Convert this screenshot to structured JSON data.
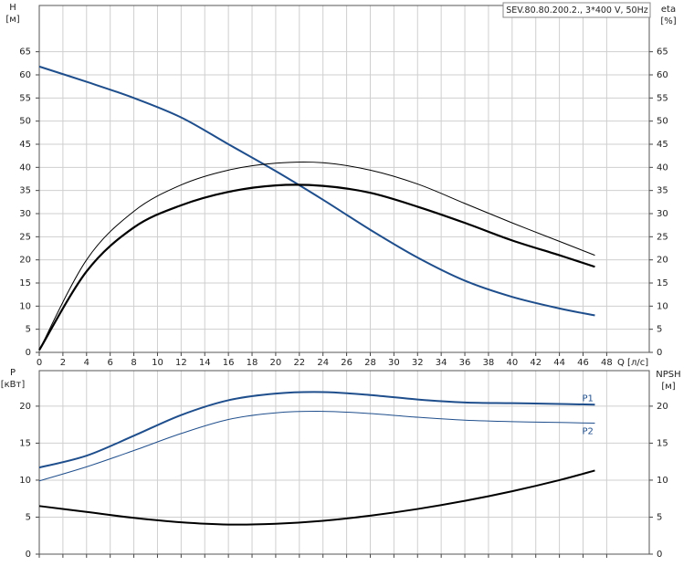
{
  "chart_data": [
    {
      "type": "line",
      "title": "SEV.80.80.200.2., 3*400 V, 50Hz",
      "xlabel": "Q [л/с]",
      "ylabel": "H",
      "yunit": "[м]",
      "y2label": "eta",
      "y2unit": "[%]",
      "x": [
        0,
        4,
        8,
        12,
        16,
        20,
        24,
        28,
        32,
        36,
        40,
        44,
        47
      ],
      "series": [
        {
          "color": "#1f4e8c",
          "values": [
            61.8,
            58.5,
            55,
            50.8,
            45,
            39.2,
            33,
            26.5,
            20.5,
            15.5,
            12,
            9.5,
            8
          ]
        },
        {
          "color": "#000000",
          "axis": "y2",
          "values": [
            0.5,
            17.5,
            27,
            31.8,
            34.7,
            36.1,
            36,
            34.5,
            31.5,
            28,
            24.2,
            21,
            18.5
          ]
        },
        {
          "color": "#000000",
          "axis": "y2",
          "values": [
            0.5,
            20,
            30.5,
            36.2,
            39.4,
            40.9,
            41,
            39.4,
            36.4,
            32.2,
            28,
            24,
            21
          ]
        }
      ],
      "xlim": [
        0,
        51.6
      ],
      "xticks": [
        0,
        2,
        4,
        6,
        8,
        10,
        12,
        14,
        16,
        18,
        20,
        22,
        24,
        26,
        28,
        30,
        32,
        34,
        36,
        38,
        40,
        42,
        44,
        46,
        48
      ],
      "xtick_labels": true,
      "ylim": [
        0,
        75
      ],
      "yticks": [
        0,
        5,
        10,
        15,
        20,
        25,
        30,
        35,
        40,
        45,
        50,
        55,
        60,
        65
      ],
      "y2lim": [
        0,
        75
      ],
      "y2ticks": [
        0,
        5,
        10,
        15,
        20,
        25,
        30,
        35,
        40,
        45,
        50,
        55,
        60,
        65
      ],
      "grid": true
    },
    {
      "type": "line",
      "ylabel": "P",
      "yunit": "[кВт]",
      "y2label": "NPSH",
      "y2unit": "[м]",
      "x": [
        0,
        4,
        8,
        12,
        16,
        20,
        24,
        28,
        32,
        36,
        40,
        44,
        47
      ],
      "series": [
        {
          "name": "P1",
          "color": "#1f4e8c",
          "values": [
            11.7,
            13.3,
            16,
            18.8,
            20.8,
            21.7,
            21.9,
            21.5,
            20.9,
            20.5,
            20.4,
            20.3,
            20.2
          ]
        },
        {
          "name": "P2",
          "color": "#1f4e8c",
          "values": [
            9.9,
            11.8,
            14,
            16.3,
            18.2,
            19.1,
            19.3,
            19,
            18.5,
            18.1,
            17.9,
            17.8,
            17.7
          ]
        },
        {
          "color": "#000000",
          "axis": "y2",
          "values": [
            6.5,
            5.7,
            4.9,
            4.3,
            4,
            4.1,
            4.5,
            5.2,
            6.1,
            7.2,
            8.5,
            10,
            11.3
          ]
        }
      ],
      "xlim": [
        0,
        51.6
      ],
      "xticks": [
        0,
        2,
        4,
        6,
        8,
        10,
        12,
        14,
        16,
        18,
        20,
        22,
        24,
        26,
        28,
        30,
        32,
        34,
        36,
        38,
        40,
        42,
        44,
        46,
        48
      ],
      "xtick_labels": false,
      "ylim": [
        0,
        24.8
      ],
      "yticks": [
        0,
        5,
        10,
        15,
        20
      ],
      "y2lim": [
        0,
        24.8
      ],
      "y2ticks": [
        0,
        5,
        10,
        15,
        20
      ],
      "grid": true
    }
  ]
}
